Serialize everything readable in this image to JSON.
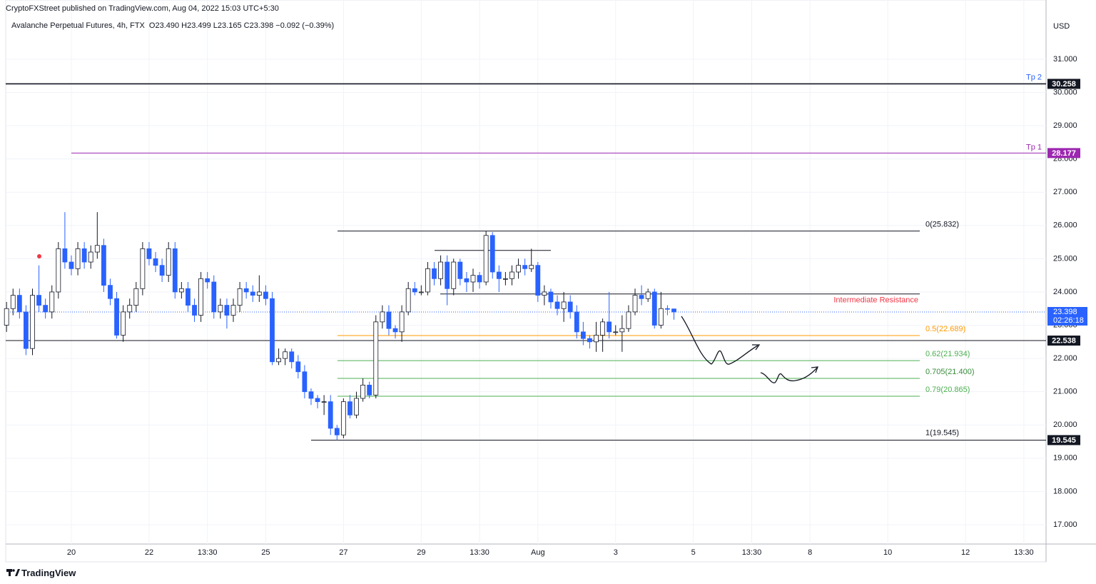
{
  "header": "CryptoFXStreet published on TradingView.com, Aug 04, 2022 15:03 UTC+5:30",
  "footer": "TradingView",
  "chart_data": {
    "type": "candlestick",
    "title": "Avalanche Perpetual Futures, 4h, FTX",
    "ohlc_legend": "O23.490 H23.499 L23.165 C23.398 −0.092 (−0.39%)",
    "currency": "USD",
    "up_color": "#ffffff",
    "down_color": "#2962ff",
    "wick_color": "#131722",
    "grid": true,
    "x": [
      -10,
      -9,
      -8,
      -7,
      -6,
      -5,
      -4,
      -3,
      -2,
      -1,
      0,
      1,
      2,
      3,
      4,
      5,
      6,
      7,
      8,
      9,
      10,
      11,
      12,
      13,
      14,
      15,
      16,
      17,
      18,
      19,
      20,
      21,
      22,
      23,
      24,
      25,
      26,
      27,
      28,
      29,
      30,
      31,
      32,
      33,
      34,
      35,
      36,
      37,
      38,
      39,
      40,
      41,
      42,
      43,
      44,
      45,
      46,
      47,
      48,
      49,
      50,
      51,
      52,
      53,
      54,
      55,
      56,
      57,
      58,
      59,
      60,
      61,
      62,
      63,
      64,
      65,
      66,
      67,
      68,
      69,
      70,
      71,
      72,
      73,
      74,
      75,
      76,
      77,
      78,
      79,
      80,
      81,
      82,
      83,
      84,
      85,
      86,
      87,
      88,
      89,
      90,
      91,
      92,
      93
    ],
    "open": [
      23.0,
      23.5,
      23.9,
      23.4,
      22.3,
      23.9,
      23.6,
      23.4,
      24.0,
      25.3,
      24.9,
      24.7,
      25.3,
      24.9,
      25.2,
      25.4,
      24.2,
      23.8,
      22.7,
      23.4,
      23.6,
      24.1,
      25.3,
      25.0,
      24.8,
      24.5,
      25.3,
      24.0,
      24.1,
      23.6,
      23.3,
      24.4,
      24.3,
      23.4,
      23.6,
      23.3,
      23.6,
      24.1,
      24.0,
      23.9,
      24.0,
      23.8,
      21.9,
      22.0,
      22.2,
      21.9,
      21.6,
      21.0,
      20.8,
      20.7,
      20.7,
      19.9,
      19.7,
      20.7,
      20.3,
      20.8,
      21.2,
      20.9,
      23.1,
      23.4,
      22.9,
      22.8,
      23.4,
      24.1,
      24.0,
      24.0,
      24.7,
      24.4,
      24.9,
      24.1,
      24.9,
      24.4,
      24.3,
      24.5,
      24.3,
      25.7,
      24.6,
      24.4,
      24.4,
      24.6,
      24.8,
      24.7,
      24.8,
      23.9,
      24.0,
      23.7,
      23.5,
      23.7,
      23.4,
      22.8,
      22.6,
      22.5,
      22.7,
      23.1,
      22.8,
      22.8,
      22.9,
      23.4,
      23.9,
      23.8,
      24.0,
      23.0,
      23.5,
      23.49
    ],
    "high": [
      23.7,
      24.1,
      24.1,
      23.6,
      24.1,
      24.8,
      23.8,
      24.2,
      25.5,
      26.4,
      25.1,
      25.5,
      25.5,
      25.4,
      26.4,
      25.6,
      24.4,
      24.0,
      23.6,
      23.8,
      24.3,
      25.5,
      25.5,
      25.2,
      25.0,
      25.5,
      25.5,
      24.3,
      24.3,
      23.8,
      24.6,
      24.6,
      24.5,
      23.8,
      23.8,
      23.8,
      24.3,
      24.3,
      24.2,
      24.5,
      24.2,
      24.0,
      22.3,
      22.3,
      22.3,
      22.1,
      21.8,
      21.1,
      20.9,
      20.9,
      20.9,
      20.0,
      20.8,
      20.9,
      21.0,
      21.4,
      21.3,
      23.3,
      23.6,
      23.6,
      23.0,
      23.6,
      24.3,
      24.3,
      24.2,
      24.9,
      24.9,
      25.1,
      25.1,
      25.0,
      25.0,
      24.6,
      24.7,
      24.6,
      25.832,
      25.8,
      24.8,
      24.6,
      24.8,
      25.0,
      25.0,
      25.3,
      24.9,
      24.2,
      24.1,
      23.9,
      24.0,
      23.9,
      23.6,
      23.1,
      22.7,
      23.1,
      23.2,
      24.0,
      23.0,
      23.3,
      23.6,
      24.1,
      24.2,
      24.1,
      24.1,
      24.0,
      23.6,
      23.499
    ],
    "low": [
      22.8,
      23.3,
      23.2,
      22.1,
      22.1,
      23.4,
      23.2,
      23.2,
      23.8,
      24.7,
      24.5,
      24.5,
      24.7,
      24.7,
      25.0,
      24.0,
      23.6,
      22.6,
      22.5,
      23.2,
      23.4,
      23.9,
      24.8,
      24.6,
      24.3,
      24.3,
      23.8,
      23.8,
      23.4,
      23.1,
      23.1,
      24.1,
      23.2,
      23.2,
      22.9,
      23.1,
      23.4,
      23.8,
      23.7,
      23.7,
      23.6,
      21.8,
      21.8,
      21.8,
      21.7,
      21.4,
      20.8,
      20.6,
      20.5,
      20.3,
      19.7,
      19.545,
      19.6,
      20.2,
      20.2,
      20.7,
      20.8,
      20.8,
      22.9,
      22.7,
      22.6,
      22.5,
      23.3,
      23.9,
      23.9,
      23.9,
      24.2,
      24.2,
      23.6,
      23.9,
      24.2,
      24.0,
      24.0,
      24.1,
      24.2,
      24.4,
      24.0,
      24.2,
      24.2,
      24.4,
      24.5,
      24.6,
      23.7,
      23.6,
      23.5,
      23.3,
      23.1,
      23.2,
      22.6,
      22.4,
      22.3,
      22.2,
      22.2,
      22.6,
      22.7,
      22.2,
      22.8,
      23.3,
      23.6,
      23.7,
      22.9,
      22.9,
      23.3,
      23.165
    ],
    "close": [
      23.5,
      23.9,
      23.4,
      22.3,
      23.9,
      23.6,
      23.4,
      24.0,
      25.3,
      24.9,
      24.7,
      25.3,
      24.9,
      25.2,
      25.4,
      24.2,
      23.8,
      22.7,
      23.4,
      23.6,
      24.1,
      25.3,
      25.0,
      24.8,
      24.5,
      25.3,
      24.0,
      24.1,
      23.6,
      23.3,
      24.4,
      24.3,
      23.4,
      23.6,
      23.3,
      23.6,
      24.1,
      24.0,
      23.9,
      24.0,
      23.8,
      21.9,
      22.0,
      22.2,
      21.9,
      21.6,
      21.0,
      20.8,
      20.7,
      20.7,
      19.9,
      19.7,
      20.7,
      20.3,
      20.8,
      21.2,
      20.9,
      23.1,
      23.4,
      22.9,
      22.8,
      23.4,
      24.1,
      24.0,
      24.0,
      24.7,
      24.4,
      24.9,
      24.1,
      24.9,
      24.4,
      24.3,
      24.5,
      24.3,
      25.7,
      24.6,
      24.4,
      24.4,
      24.6,
      24.8,
      24.7,
      24.8,
      23.9,
      24.0,
      23.7,
      23.5,
      23.7,
      23.4,
      22.8,
      22.6,
      22.5,
      22.7,
      23.1,
      22.8,
      22.8,
      22.9,
      23.4,
      23.9,
      23.8,
      24.0,
      23.0,
      23.5,
      23.49,
      23.398
    ],
    "xlim": [
      -10.13,
      150.43
    ],
    "xticks": [
      {
        "value": 0,
        "label": "20"
      },
      {
        "value": 12,
        "label": "22"
      },
      {
        "value": 21,
        "label": "13:30"
      },
      {
        "value": 30,
        "label": "25"
      },
      {
        "value": 42,
        "label": "27"
      },
      {
        "value": 54,
        "label": "29"
      },
      {
        "value": 63,
        "label": "13:30"
      },
      {
        "value": 72,
        "label": "Aug"
      },
      {
        "value": 84,
        "label": "3"
      },
      {
        "value": 96,
        "label": "5"
      },
      {
        "value": 105,
        "label": "13:30"
      },
      {
        "value": 114,
        "label": "8"
      },
      {
        "value": 126,
        "label": "10"
      },
      {
        "value": 138,
        "label": "12"
      },
      {
        "value": 147,
        "label": "13:30"
      }
    ],
    "ylim": [
      16.42,
      32.78
    ],
    "yticks": [
      {
        "value": 17,
        "label": "17.000"
      },
      {
        "value": 18,
        "label": "18.000"
      },
      {
        "value": 19,
        "label": "19.000"
      },
      {
        "value": 20,
        "label": "20.000"
      },
      {
        "value": 21,
        "label": "21.000"
      },
      {
        "value": 22,
        "label": "22.000"
      },
      {
        "value": 23,
        "label": "23.000"
      },
      {
        "value": 24,
        "label": "24.000"
      },
      {
        "value": 25,
        "label": "25.000"
      },
      {
        "value": 26,
        "label": "26.000"
      },
      {
        "value": 27,
        "label": "27.000"
      },
      {
        "value": 28,
        "label": "28.000"
      },
      {
        "value": 29,
        "label": "29.000"
      },
      {
        "value": 30,
        "label": "30.000"
      },
      {
        "value": 31,
        "label": "31.000"
      }
    ],
    "levels": [
      {
        "value": 30.258,
        "label": "Tp 2",
        "color": "#131722",
        "label_color": "#2962ff",
        "badge": true
      },
      {
        "value": 28.177,
        "label": "Tp 1",
        "color": "#9c27b0",
        "label_color": "#9c27b0",
        "badge": true
      },
      {
        "value": 25.832,
        "label": "0(25.832)",
        "color": "#131722",
        "label_color": "#131722",
        "badge": false
      },
      {
        "value": 22.689,
        "label": "0.5(22.689)",
        "color": "#ff9800",
        "label_color": "#ff9800",
        "badge": false
      },
      {
        "value": 21.934,
        "label": "0.62(21.934)",
        "color": "#4caf50",
        "label_color": "#4caf50",
        "badge": false
      },
      {
        "value": 21.4,
        "label": "0.705(21.400)",
        "color": "#4caf50",
        "label_color": "#388e3c",
        "badge": false
      },
      {
        "value": 20.865,
        "label": "0.79(20.865)",
        "color": "#4caf50",
        "label_color": "#4caf50",
        "badge": false
      },
      {
        "value": 19.545,
        "label": "1(19.545)",
        "color": "#131722",
        "label_color": "#131722",
        "badge": true
      },
      {
        "value": 22.538,
        "color": "#131722",
        "badge": true
      },
      {
        "value": 23.94,
        "label": "Intermediate Resistance",
        "color": "#131722",
        "label_color": "#f23645",
        "badge": false
      },
      {
        "value": 25.25,
        "color": "#131722",
        "badge": false
      }
    ],
    "last_price": {
      "value": 23.398,
      "countdown": "02:26:18",
      "color": "#2962ff"
    }
  }
}
